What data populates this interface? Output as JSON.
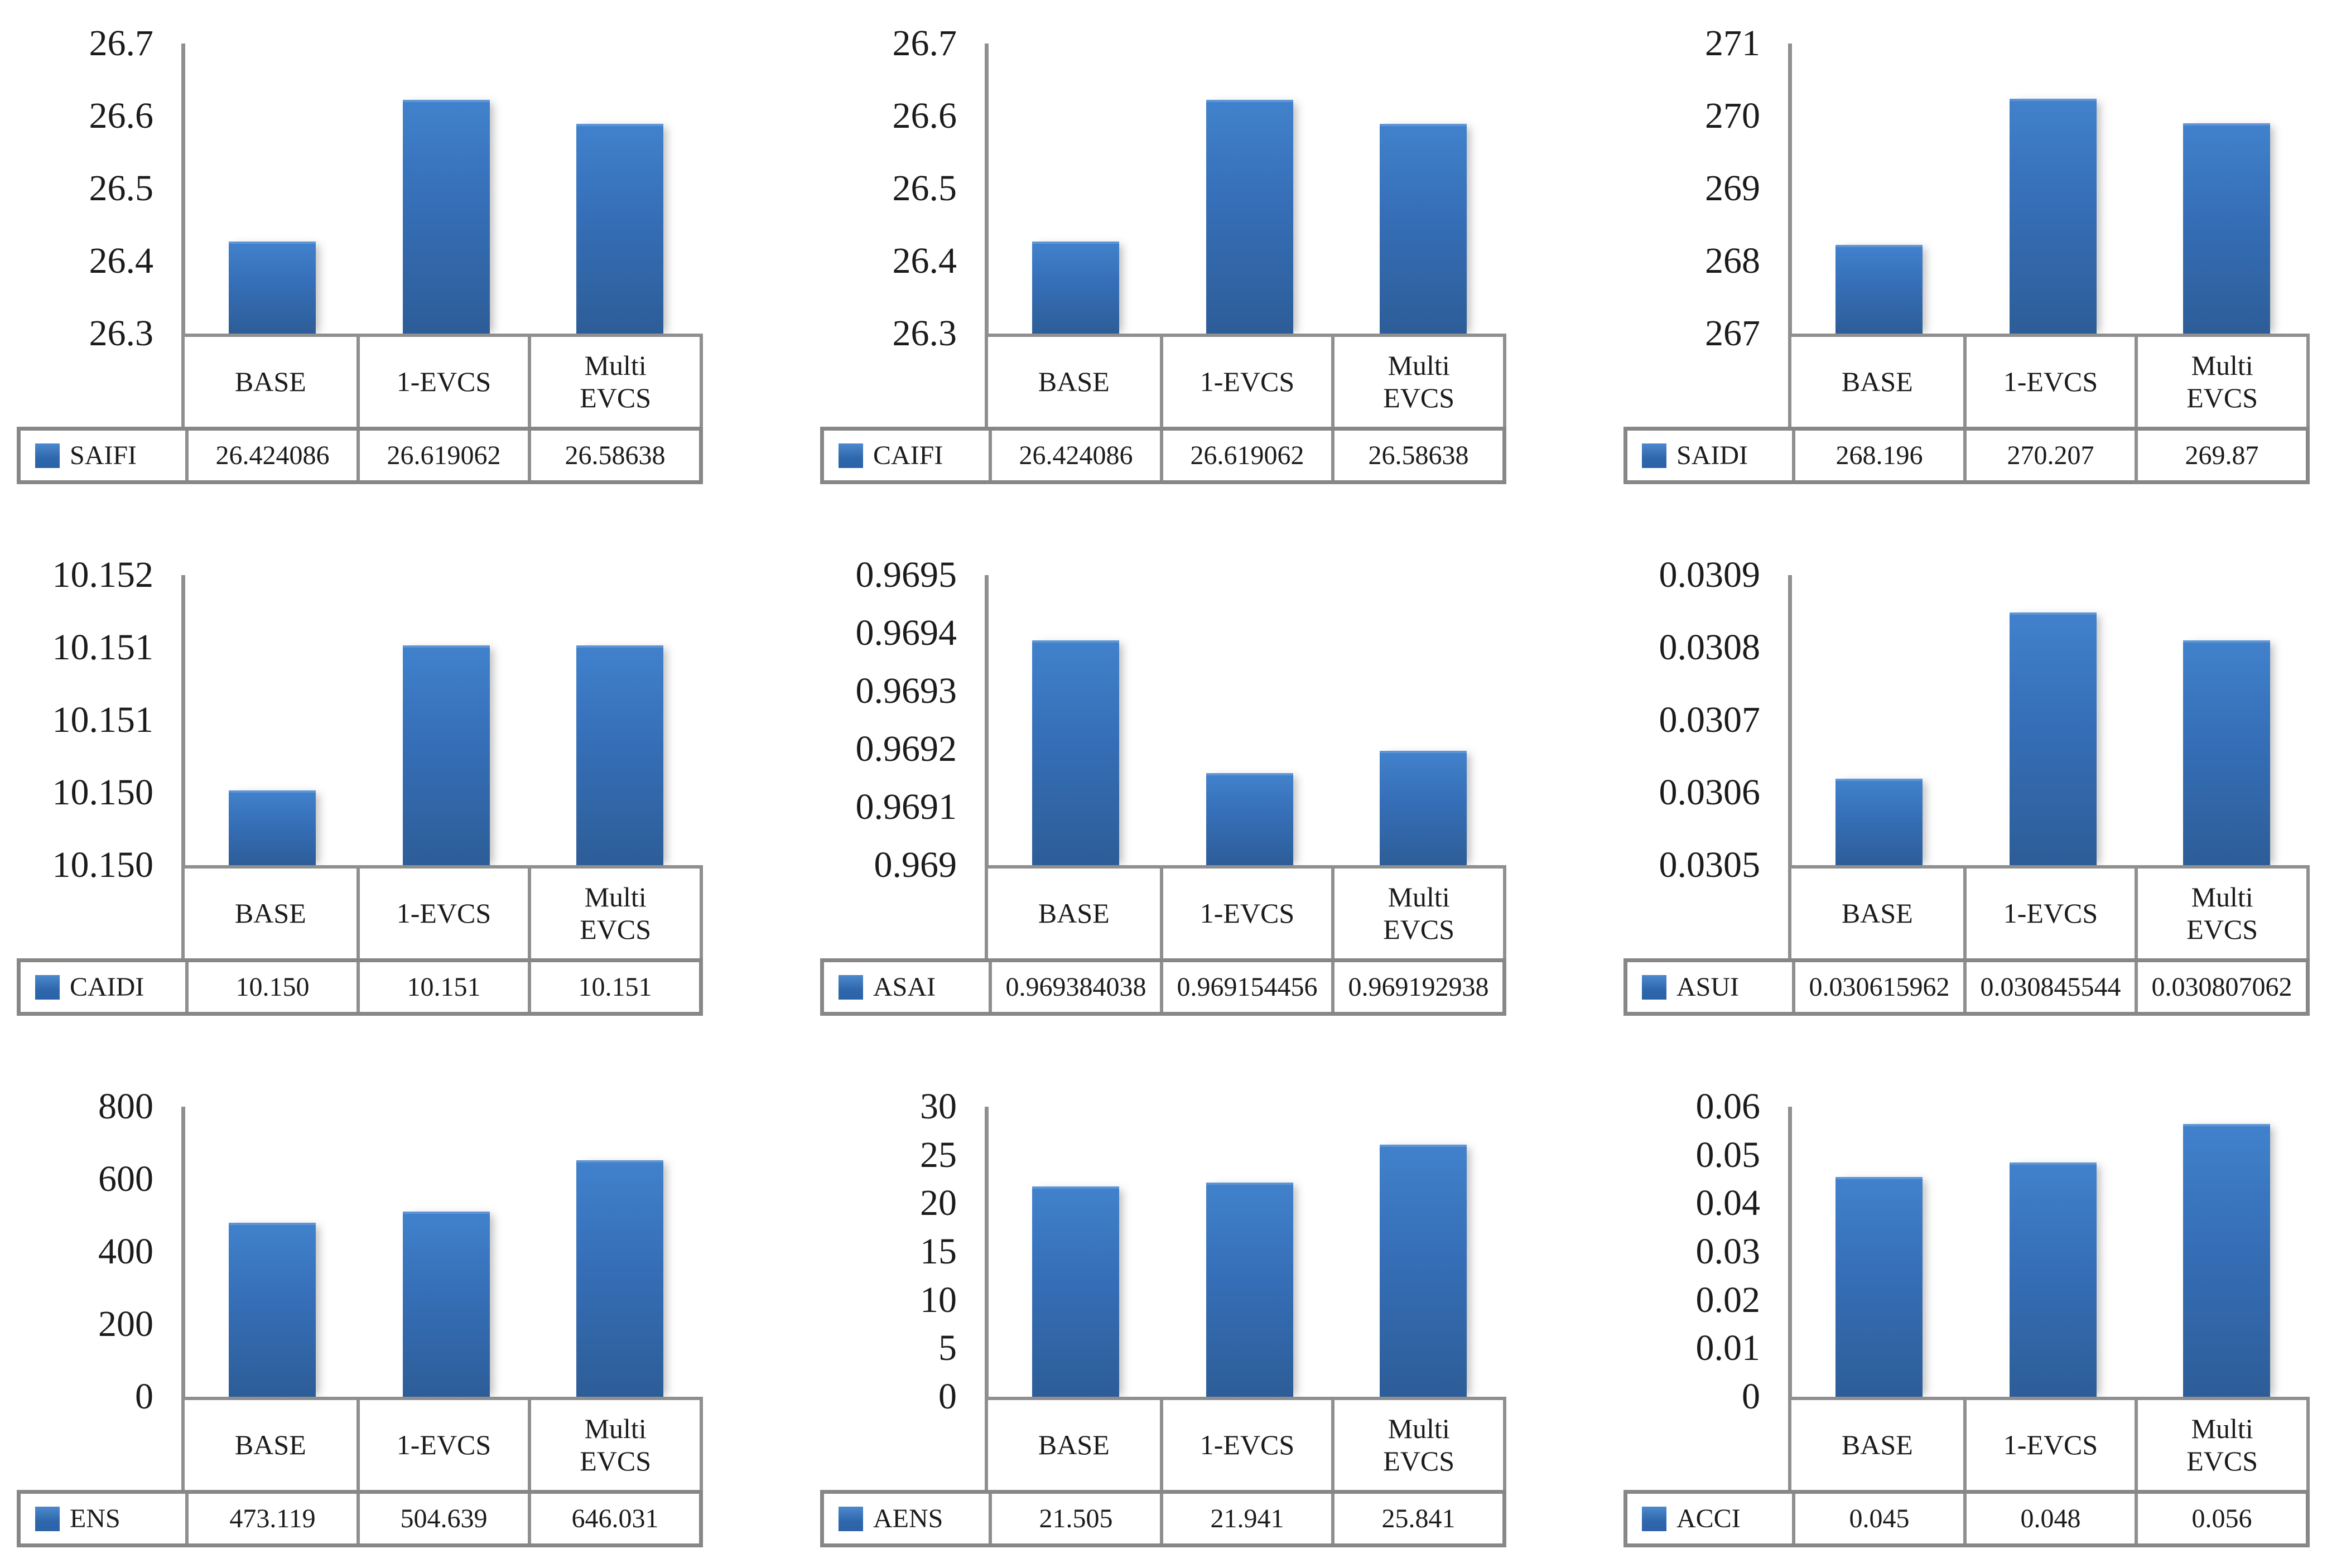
{
  "figure": {
    "background": "#ffffff",
    "description": "3x3 grid of Excel-style bar charts with data tables comparing reliability indices for BASE, 1-EVCS and Multi EVCS cases"
  },
  "colors": {
    "bar_top": "#4181CB",
    "bar_bottom": "#2D5D98",
    "bar_highlight": "#5E95D6",
    "legend_swatch": "#2F67AC",
    "table_border": "#8f8f8f",
    "axis_line": "#8f8f8f",
    "text": "#1b1b1b"
  },
  "chart_data": [
    {
      "type": "bar",
      "name": "SAIFI",
      "legend_label": "SAIFI",
      "categories": [
        "BASE",
        "1-EVCS",
        "Multi EVCS"
      ],
      "category_display": [
        "BASE",
        "1-EVCS",
        "Multi\nEVCS"
      ],
      "values": [
        26.424086,
        26.619062,
        26.58638
      ],
      "value_labels": [
        "26.424086",
        "26.619062",
        "26.58638"
      ],
      "y_ticks": [
        "26.7",
        "26.6",
        "26.5",
        "26.4",
        "26.3"
      ],
      "ylim": [
        26.3,
        26.7
      ],
      "grid": false,
      "legend_position": "table-left"
    },
    {
      "type": "bar",
      "name": "CAIFI",
      "legend_label": "CAIFI",
      "categories": [
        "BASE",
        "1-EVCS",
        "Multi EVCS"
      ],
      "category_display": [
        "BASE",
        "1-EVCS",
        "Multi\nEVCS"
      ],
      "values": [
        26.424086,
        26.619062,
        26.58638
      ],
      "value_labels": [
        "26.424086",
        "26.619062",
        "26.58638"
      ],
      "y_ticks": [
        "26.7",
        "26.6",
        "26.5",
        "26.4",
        "26.3"
      ],
      "ylim": [
        26.3,
        26.7
      ],
      "grid": false,
      "legend_position": "table-left"
    },
    {
      "type": "bar",
      "name": "SAIDI",
      "legend_label": "SAIDI",
      "categories": [
        "BASE",
        "1-EVCS",
        "Multi EVCS"
      ],
      "category_display": [
        "BASE",
        "1-EVCS",
        "Multi\nEVCS"
      ],
      "values": [
        268.196,
        270.207,
        269.87
      ],
      "value_labels": [
        "268.196",
        "270.207",
        "269.87"
      ],
      "y_ticks": [
        "271",
        "270",
        "269",
        "268",
        "267"
      ],
      "ylim": [
        267,
        271
      ],
      "grid": false,
      "legend_position": "table-left"
    },
    {
      "type": "bar",
      "name": "CAIDI",
      "legend_label": "CAIDI",
      "categories": [
        "BASE",
        "1-EVCS",
        "Multi EVCS"
      ],
      "category_display": [
        "BASE",
        "1-EVCS",
        "Multi\nEVCS"
      ],
      "values": [
        10.15,
        10.151,
        10.151
      ],
      "value_labels": [
        "10.150",
        "10.151",
        "10.151"
      ],
      "y_ticks": [
        "10.152",
        "10.151",
        "10.151",
        "10.150",
        "10.150"
      ],
      "ylim": [
        10.1495,
        10.1515
      ],
      "grid": false,
      "legend_position": "table-left"
    },
    {
      "type": "bar",
      "name": "ASAI",
      "legend_label": "ASAI",
      "categories": [
        "BASE",
        "1-EVCS",
        "Multi EVCS"
      ],
      "category_display": [
        "BASE",
        "1-EVCS",
        "Multi\nEVCS"
      ],
      "values": [
        0.969384038,
        0.969154456,
        0.969192938
      ],
      "value_labels": [
        "0.969384038",
        "0.969154456",
        "0.969192938"
      ],
      "y_ticks": [
        "0.9695",
        "0.9694",
        "0.9693",
        "0.9692",
        "0.9691",
        "0.969"
      ],
      "ylim": [
        0.969,
        0.9695
      ],
      "grid": false,
      "legend_position": "table-left"
    },
    {
      "type": "bar",
      "name": "ASUI",
      "legend_label": "ASUI",
      "categories": [
        "BASE",
        "1-EVCS",
        "Multi EVCS"
      ],
      "category_display": [
        "BASE",
        "1-EVCS",
        "Multi\nEVCS"
      ],
      "values": [
        0.030615962,
        0.030845544,
        0.030807062
      ],
      "value_labels": [
        "0.030615962",
        "0.030845544",
        "0.030807062"
      ],
      "y_ticks": [
        "0.0309",
        "0.0308",
        "0.0307",
        "0.0306",
        "0.0305"
      ],
      "ylim": [
        0.0305,
        0.0309
      ],
      "grid": false,
      "legend_position": "table-left"
    },
    {
      "type": "bar",
      "name": "ENS",
      "legend_label": "ENS",
      "categories": [
        "BASE",
        "1-EVCS",
        "Multi EVCS"
      ],
      "category_display": [
        "BASE",
        "1-EVCS",
        "Multi\nEVCS"
      ],
      "values": [
        473.119,
        504.639,
        646.031
      ],
      "value_labels": [
        "473.119",
        "504.639",
        "646.031"
      ],
      "y_ticks": [
        "800",
        "600",
        "400",
        "200",
        "0"
      ],
      "ylim": [
        0,
        800
      ],
      "grid": false,
      "legend_position": "table-left"
    },
    {
      "type": "bar",
      "name": "AENS",
      "legend_label": "AENS",
      "categories": [
        "BASE",
        "1-EVCS",
        "Multi EVCS"
      ],
      "category_display": [
        "BASE",
        "1-EVCS",
        "Multi\nEVCS"
      ],
      "values": [
        21.505,
        21.941,
        25.841
      ],
      "value_labels": [
        "21.505",
        "21.941",
        "25.841"
      ],
      "y_ticks": [
        "30",
        "25",
        "20",
        "15",
        "10",
        "5",
        "0"
      ],
      "ylim": [
        0,
        30
      ],
      "grid": false,
      "legend_position": "table-left"
    },
    {
      "type": "bar",
      "name": "ACCI",
      "legend_label": "ACCI",
      "categories": [
        "BASE",
        "1-EVCS",
        "Multi EVCS"
      ],
      "category_display": [
        "BASE",
        "1-EVCS",
        "Multi\nEVCS"
      ],
      "values": [
        0.045,
        0.048,
        0.056
      ],
      "value_labels": [
        "0.045",
        "0.048",
        "0.056"
      ],
      "y_ticks": [
        "0.06",
        "0.05",
        "0.04",
        "0.03",
        "0.02",
        "0.01",
        "0"
      ],
      "ylim": [
        0,
        0.06
      ],
      "grid": false,
      "legend_position": "table-left"
    }
  ]
}
